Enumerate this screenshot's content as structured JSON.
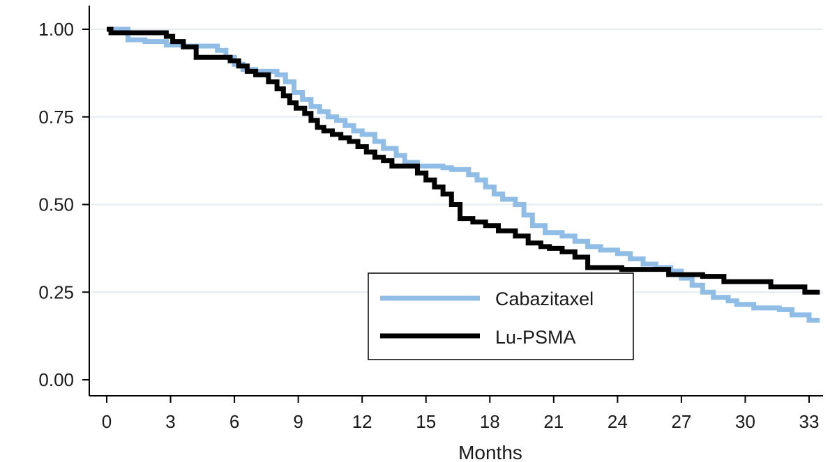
{
  "chart_data": {
    "type": "line",
    "step": true,
    "title": "",
    "xlabel": "Months",
    "ylabel": "",
    "xlim": [
      0,
      33.5
    ],
    "ylim": [
      0,
      1
    ],
    "x_ticks": [
      0,
      3,
      6,
      9,
      12,
      15,
      18,
      21,
      24,
      27,
      30,
      33
    ],
    "y_ticks": [
      0,
      0.25,
      0.5,
      0.75,
      1
    ],
    "x_tick_labels": [
      "0",
      "3",
      "6",
      "9",
      "12",
      "15",
      "18",
      "21",
      "24",
      "27",
      "30",
      "33"
    ],
    "y_tick_labels": [
      "0.00",
      "0.25",
      "0.50",
      "0.75",
      "1.00"
    ],
    "grid": "horizontal",
    "legend_position": "bottom-right",
    "series": [
      {
        "name": "Cabazitaxel",
        "color": "#8fbde6",
        "x": [
          0,
          1.0,
          1.8,
          2.8,
          3.6,
          5.2,
          5.6,
          6.0,
          6.4,
          7.0,
          8.0,
          8.4,
          8.8,
          9.2,
          9.6,
          10.0,
          10.4,
          10.8,
          11.2,
          11.6,
          12.0,
          12.6,
          13.0,
          13.6,
          14.0,
          14.6,
          15.8,
          16.2,
          17.0,
          17.4,
          17.8,
          18.2,
          18.6,
          19.2,
          19.6,
          20.0,
          20.6,
          21.4,
          22.0,
          22.6,
          23.2,
          24.0,
          24.6,
          25.2,
          25.8,
          26.5,
          27.0,
          27.5,
          28.0,
          28.5,
          29.2,
          29.6,
          30.4,
          31.6,
          32.2,
          33.0,
          33.5
        ],
        "y": [
          1.0,
          0.97,
          0.965,
          0.955,
          0.952,
          0.94,
          0.92,
          0.9,
          0.885,
          0.88,
          0.87,
          0.85,
          0.82,
          0.8,
          0.78,
          0.765,
          0.75,
          0.74,
          0.725,
          0.71,
          0.7,
          0.68,
          0.66,
          0.64,
          0.62,
          0.61,
          0.605,
          0.6,
          0.585,
          0.57,
          0.55,
          0.53,
          0.515,
          0.5,
          0.47,
          0.44,
          0.42,
          0.41,
          0.395,
          0.38,
          0.37,
          0.36,
          0.345,
          0.33,
          0.32,
          0.31,
          0.29,
          0.27,
          0.25,
          0.235,
          0.225,
          0.215,
          0.205,
          0.2,
          0.185,
          0.17,
          0.17
        ]
      },
      {
        "name": "Lu-PSMA",
        "color": "#000000",
        "x": [
          0,
          0.2,
          2.8,
          3.1,
          3.6,
          4.2,
          5.8,
          6.2,
          6.6,
          7.0,
          7.6,
          8.0,
          8.3,
          8.6,
          8.9,
          9.3,
          9.6,
          9.9,
          10.2,
          10.6,
          11.0,
          11.4,
          11.8,
          12.2,
          12.6,
          13.0,
          13.4,
          14.6,
          15.0,
          15.4,
          15.8,
          16.2,
          16.6,
          17.2,
          17.8,
          18.4,
          19.2,
          19.8,
          20.4,
          20.8,
          21.4,
          22.0,
          22.6,
          24.2,
          26.4,
          28.0,
          29.0,
          31.2,
          32.8,
          33.5
        ],
        "y": [
          1.0,
          0.99,
          0.98,
          0.965,
          0.95,
          0.92,
          0.91,
          0.895,
          0.88,
          0.87,
          0.85,
          0.83,
          0.81,
          0.79,
          0.775,
          0.76,
          0.74,
          0.72,
          0.71,
          0.7,
          0.69,
          0.68,
          0.665,
          0.65,
          0.635,
          0.625,
          0.61,
          0.59,
          0.57,
          0.55,
          0.53,
          0.5,
          0.46,
          0.45,
          0.44,
          0.425,
          0.41,
          0.39,
          0.38,
          0.375,
          0.365,
          0.35,
          0.32,
          0.315,
          0.3,
          0.295,
          0.28,
          0.265,
          0.25,
          0.25
        ]
      }
    ]
  }
}
